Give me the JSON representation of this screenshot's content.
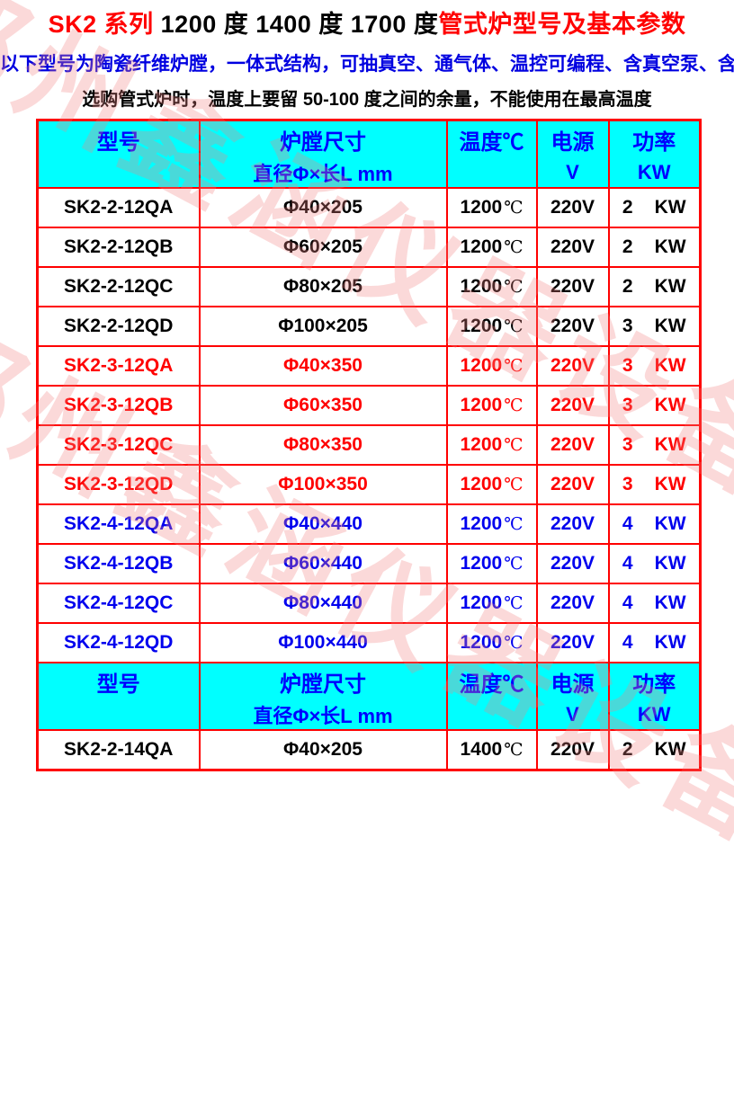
{
  "title": {
    "seg1": "SK2 系列 ",
    "seg2": "1200 度 1400 度 1700 度",
    "seg3": "管式炉型号及基本参数"
  },
  "subtitle": "以下型号为陶瓷纤维炉膛，一体式结构，可抽真空、通气体、温控可编程、含真空泵、含法兰。",
  "note": "选购管式炉时，温度上要留 50-100 度之间的余量，不能使用在最高温度",
  "watermark": "郑州鑫涵仪器设备有限公司",
  "colors": {
    "header_bg": "#00ffff",
    "grid_border": "#ff0000",
    "header_text": "#0000ff",
    "group_black": "#000000",
    "group_red": "#ff0000",
    "group_blue": "#0000ee",
    "title_red": "#ff0000",
    "subtitle_blue": "#0000e0",
    "watermark_pink": "#f2a0a0"
  },
  "table": {
    "headers": {
      "model": "型号",
      "size_line1": "炉膛尺寸",
      "size_line2": "直径Φ×长L mm",
      "temp": "温度℃",
      "power_line1": "电源",
      "power_line2": "V",
      "rating_line1": "功率",
      "rating_line2": "KW"
    },
    "body": [
      {
        "kind": "header"
      },
      {
        "kind": "row",
        "group": "black",
        "model": "SK2-2-12QA",
        "size": "Φ40×205",
        "temp": "1200",
        "temp_unit": "℃",
        "voltage": "220V",
        "power": "2",
        "power_unit": "KW"
      },
      {
        "kind": "row",
        "group": "black",
        "model": "SK2-2-12QB",
        "size": "Φ60×205",
        "temp": "1200",
        "temp_unit": "℃",
        "voltage": "220V",
        "power": "2",
        "power_unit": "KW"
      },
      {
        "kind": "row",
        "group": "black",
        "model": "SK2-2-12QC",
        "size": "Φ80×205",
        "temp": "1200",
        "temp_unit": "℃",
        "voltage": "220V",
        "power": "2",
        "power_unit": "KW"
      },
      {
        "kind": "row",
        "group": "black",
        "model": "SK2-2-12QD",
        "size": "Φ100×205",
        "temp": "1200",
        "temp_unit": "℃",
        "voltage": "220V",
        "power": "3",
        "power_unit": "KW"
      },
      {
        "kind": "row",
        "group": "red",
        "model": "SK2-3-12QA",
        "size": "Φ40×350",
        "temp": "1200",
        "temp_unit": "℃",
        "voltage": "220V",
        "power": "3",
        "power_unit": "KW"
      },
      {
        "kind": "row",
        "group": "red",
        "model": "SK2-3-12QB",
        "size": "Φ60×350",
        "temp": "1200",
        "temp_unit": "℃",
        "voltage": "220V",
        "power": "3",
        "power_unit": "KW"
      },
      {
        "kind": "row",
        "group": "red",
        "model": "SK2-3-12QC",
        "size": "Φ80×350",
        "temp": "1200",
        "temp_unit": "℃",
        "voltage": "220V",
        "power": "3",
        "power_unit": "KW"
      },
      {
        "kind": "row",
        "group": "red",
        "model": "SK2-3-12QD",
        "size": "Φ100×350",
        "temp": "1200",
        "temp_unit": "℃",
        "voltage": "220V",
        "power": "3",
        "power_unit": "KW"
      },
      {
        "kind": "row",
        "group": "blue",
        "model": "SK2-4-12QA",
        "size": "Φ40×440",
        "temp": "1200",
        "temp_unit": "℃",
        "voltage": "220V",
        "power": "4",
        "power_unit": "KW"
      },
      {
        "kind": "row",
        "group": "blue",
        "model": "SK2-4-12QB",
        "size": "Φ60×440",
        "temp": "1200",
        "temp_unit": "℃",
        "voltage": "220V",
        "power": "4",
        "power_unit": "KW"
      },
      {
        "kind": "row",
        "group": "blue",
        "model": "SK2-4-12QC",
        "size": "Φ80×440",
        "temp": "1200",
        "temp_unit": "℃",
        "voltage": "220V",
        "power": "4",
        "power_unit": "KW"
      },
      {
        "kind": "row",
        "group": "blue",
        "model": "SK2-4-12QD",
        "size": "Φ100×440",
        "temp": "1200",
        "temp_unit": "℃",
        "voltage": "220V",
        "power": "4",
        "power_unit": "KW"
      },
      {
        "kind": "header"
      },
      {
        "kind": "row",
        "group": "black",
        "model": "SK2-2-14QA",
        "size": "Φ40×205",
        "temp": "1400",
        "temp_unit": "℃",
        "voltage": "220V",
        "power": "2",
        "power_unit": "KW"
      }
    ]
  }
}
